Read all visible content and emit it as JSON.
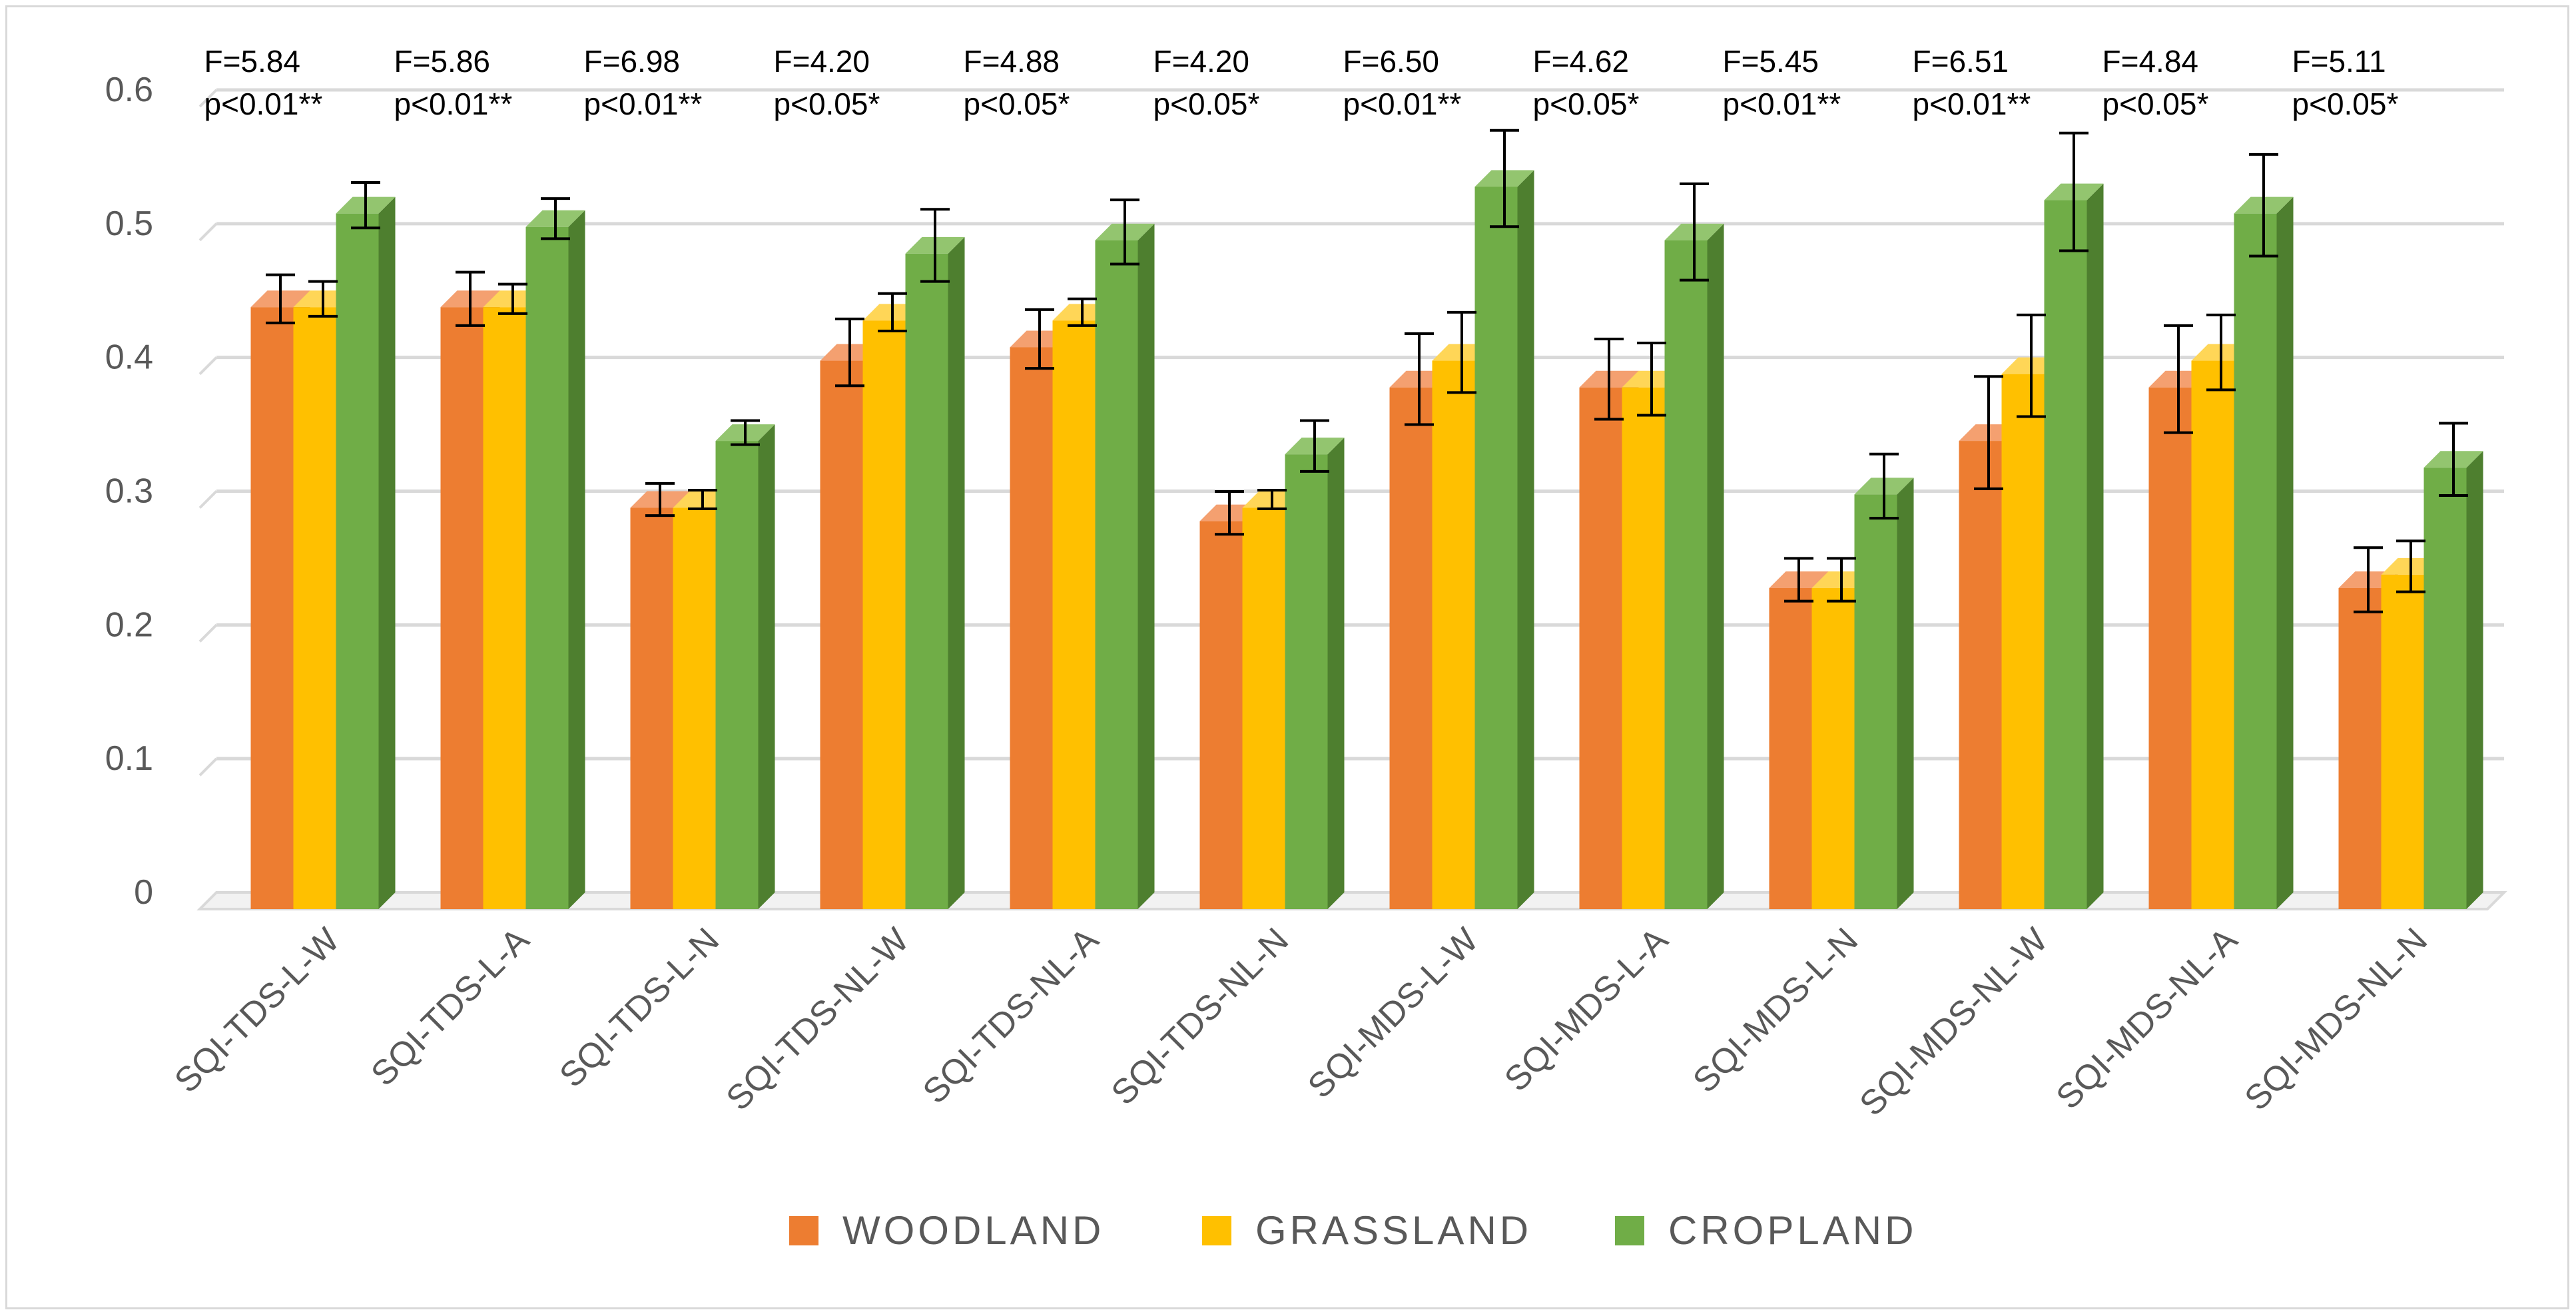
{
  "chart_data": {
    "type": "bar",
    "title": "",
    "xlabel": "",
    "ylabel": "",
    "ylim": [
      0,
      0.6
    ],
    "yticks": [
      "0",
      "0.1",
      "0.2",
      "0.3",
      "0.4",
      "0.5",
      "0.6"
    ],
    "grid": true,
    "legend_position": "bottom",
    "categories": [
      "SQI-TDS-L-W",
      "SQI-TDS-L-A",
      "SQI-TDS-L-N",
      "SQI-TDS-NL-W",
      "SQI-TDS-NL-A",
      "SQI-TDS-NL-N",
      "SQI-MDS-L-W",
      "SQI-MDS-L-A",
      "SQI-MDS-L-N",
      "SQI-MDS-NL-W",
      "SQI-MDS-NL-A",
      "SQI-MDS-NL-N"
    ],
    "series": [
      {
        "name": "WOODLAND",
        "color": "#ed7d31",
        "side_color": "#b8581e",
        "top_color": "#f4a070",
        "values": [
          0.45,
          0.45,
          0.3,
          0.41,
          0.42,
          0.29,
          0.39,
          0.39,
          0.24,
          0.35,
          0.39,
          0.24
        ],
        "errors": [
          0.018,
          0.02,
          0.012,
          0.025,
          0.022,
          0.016,
          0.034,
          0.03,
          0.016,
          0.042,
          0.04,
          0.024
        ]
      },
      {
        "name": "GRASSLAND",
        "color": "#ffc000",
        "side_color": "#c99700",
        "top_color": "#ffd657",
        "values": [
          0.45,
          0.45,
          0.3,
          0.44,
          0.44,
          0.3,
          0.41,
          0.39,
          0.24,
          0.4,
          0.41,
          0.25
        ],
        "errors": [
          0.013,
          0.011,
          0.007,
          0.014,
          0.01,
          0.007,
          0.03,
          0.027,
          0.016,
          0.038,
          0.028,
          0.019
        ]
      },
      {
        "name": "CROPLAND",
        "color": "#70ad47",
        "side_color": "#4e7f2f",
        "top_color": "#93c56f",
        "values": [
          0.52,
          0.51,
          0.35,
          0.49,
          0.5,
          0.34,
          0.54,
          0.5,
          0.31,
          0.53,
          0.52,
          0.33
        ],
        "errors": [
          0.017,
          0.015,
          0.009,
          0.027,
          0.024,
          0.019,
          0.036,
          0.036,
          0.024,
          0.044,
          0.038,
          0.027
        ]
      }
    ],
    "annotations": [
      {
        "f": "F=5.84",
        "p": "p<0.01**"
      },
      {
        "f": "F=5.86",
        "p": "p<0.01**"
      },
      {
        "f": "F=6.98",
        "p": "p<0.01**"
      },
      {
        "f": "F=4.20",
        "p": "p<0.05*"
      },
      {
        "f": "F=4.88",
        "p": "p<0.05*"
      },
      {
        "f": "F=4.20",
        "p": "p<0.05*"
      },
      {
        "f": "F=6.50",
        "p": "p<0.01**"
      },
      {
        "f": "F=4.62",
        "p": "p<0.05*"
      },
      {
        "f": "F=5.45",
        "p": "p<0.01**"
      },
      {
        "f": "F=6.51",
        "p": "p<0.01**"
      },
      {
        "f": "F=4.84",
        "p": "p<0.05*"
      },
      {
        "f": "F=5.11",
        "p": "p<0.05*"
      }
    ],
    "colors": {
      "gridline": "#d9d9d9",
      "floor": "#d9d9d9",
      "error_bar": "#000000"
    }
  }
}
